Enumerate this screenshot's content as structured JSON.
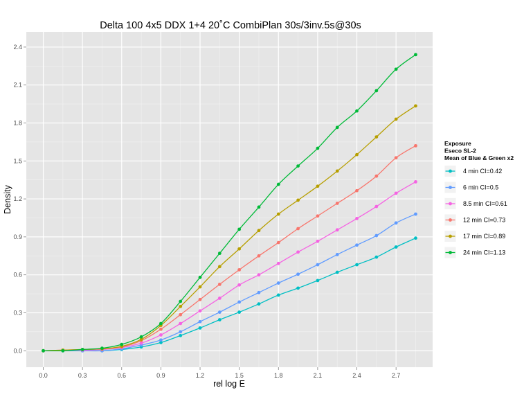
{
  "chart_data": {
    "type": "line",
    "title": "Delta 100 4x5 DDX 1+4 20˚C CombiPlan 30s/3inv.5s@30s",
    "xlabel": "rel log E",
    "ylabel": "Density",
    "xlim": [
      -0.13,
      2.98
    ],
    "ylim": [
      -0.13,
      2.52
    ],
    "x_ticks": [
      "0.0",
      "0.3",
      "0.6",
      "0.9",
      "1.2",
      "1.5",
      "1.8",
      "2.1",
      "2.4",
      "2.7"
    ],
    "y_ticks": [
      "0.0",
      "0.3",
      "0.6",
      "0.9",
      "1.2",
      "1.5",
      "1.8",
      "2.1",
      "2.4"
    ],
    "grid": true,
    "legend": {
      "position": "right",
      "title_lines": [
        "Exposure",
        "Eseco SL-2",
        "Mean of Blue & Green x2"
      ]
    },
    "x": [
      0.0,
      0.15,
      0.3,
      0.45,
      0.6,
      0.75,
      0.9,
      1.05,
      1.2,
      1.35,
      1.5,
      1.65,
      1.8,
      1.95,
      2.1,
      2.25,
      2.4,
      2.55,
      2.7,
      2.85
    ],
    "series": [
      {
        "name": "4 min CI=0.42",
        "color": "#00BFC4",
        "values": [
          0.0,
          0.0,
          0.0,
          0.0,
          0.01,
          0.03,
          0.065,
          0.12,
          0.18,
          0.245,
          0.305,
          0.37,
          0.44,
          0.495,
          0.555,
          0.62,
          0.68,
          0.74,
          0.82,
          0.89
        ]
      },
      {
        "name": "6 min CI=0.5",
        "color": "#619CFF",
        "values": [
          0.0,
          0.0,
          0.0,
          0.0,
          0.015,
          0.045,
          0.085,
          0.15,
          0.23,
          0.305,
          0.385,
          0.46,
          0.535,
          0.605,
          0.68,
          0.76,
          0.835,
          0.91,
          1.01,
          1.08
        ]
      },
      {
        "name": "8.5 min CI=0.61",
        "color": "#F564E3",
        "values": [
          0.0,
          0.005,
          0.005,
          0.01,
          0.025,
          0.06,
          0.125,
          0.215,
          0.315,
          0.415,
          0.52,
          0.6,
          0.69,
          0.78,
          0.865,
          0.955,
          1.045,
          1.14,
          1.245,
          1.335
        ]
      },
      {
        "name": "12 min CI=0.73",
        "color": "#F8766D",
        "values": [
          0.0,
          0.005,
          0.01,
          0.015,
          0.03,
          0.08,
          0.17,
          0.285,
          0.405,
          0.525,
          0.64,
          0.75,
          0.855,
          0.965,
          1.065,
          1.165,
          1.265,
          1.38,
          1.525,
          1.62
        ]
      },
      {
        "name": "17 min CI=0.89",
        "color": "#B79F00",
        "values": [
          0.0,
          0.005,
          0.01,
          0.015,
          0.035,
          0.09,
          0.2,
          0.35,
          0.505,
          0.665,
          0.805,
          0.95,
          1.08,
          1.19,
          1.3,
          1.42,
          1.55,
          1.69,
          1.83,
          1.935
        ]
      },
      {
        "name": "24 min CI=1.13",
        "color": "#00BA38",
        "values": [
          0.0,
          0.0,
          0.01,
          0.02,
          0.05,
          0.11,
          0.215,
          0.39,
          0.58,
          0.77,
          0.96,
          1.135,
          1.315,
          1.46,
          1.6,
          1.765,
          1.895,
          2.055,
          2.225,
          2.34
        ]
      }
    ]
  }
}
